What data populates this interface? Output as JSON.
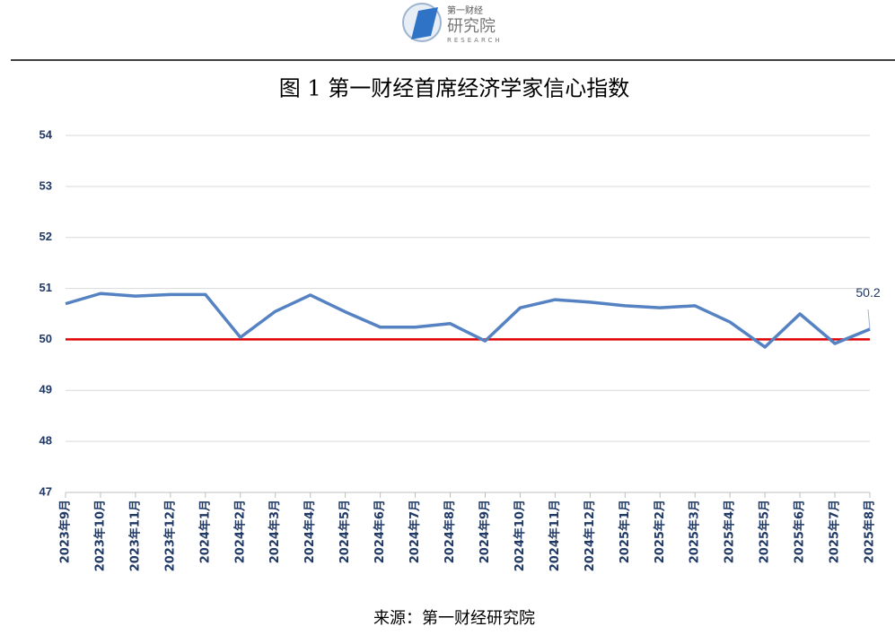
{
  "logo": {
    "brand": "第一财经",
    "name": "研究院",
    "sub": "RESEARCH"
  },
  "chart_data": {
    "type": "line",
    "title": "图 1  第一财经首席经济学家信心指数",
    "categories": [
      "2023年9月",
      "2023年10月",
      "2023年11月",
      "2023年12月",
      "2024年1月",
      "2024年2月",
      "2024年3月",
      "2024年4月",
      "2024年5月",
      "2024年6月",
      "2024年7月",
      "2024年8月",
      "2024年9月",
      "2024年10月",
      "2024年11月",
      "2024年12月",
      "2025年1月",
      "2025年2月",
      "2025年3月",
      "2025年4月",
      "2025年5月",
      "2025年6月",
      "2025年7月",
      "2025年8月"
    ],
    "series": [
      {
        "color": "#5582c2",
        "values": [
          50.7,
          50.9,
          50.85,
          50.88,
          50.88,
          50.04,
          50.55,
          50.87,
          50.54,
          50.24,
          50.24,
          50.31,
          49.97,
          50.62,
          50.78,
          50.73,
          50.66,
          50.62,
          50.66,
          50.34,
          49.85,
          50.5,
          49.92,
          50.2
        ]
      }
    ],
    "reference_line": {
      "value": 50,
      "color": "#e00000"
    },
    "ylim": [
      47,
      54
    ],
    "yticks": [
      47,
      48,
      49,
      50,
      51,
      52,
      53,
      54
    ],
    "grid": true,
    "source": "来源：第一财经研究院"
  }
}
